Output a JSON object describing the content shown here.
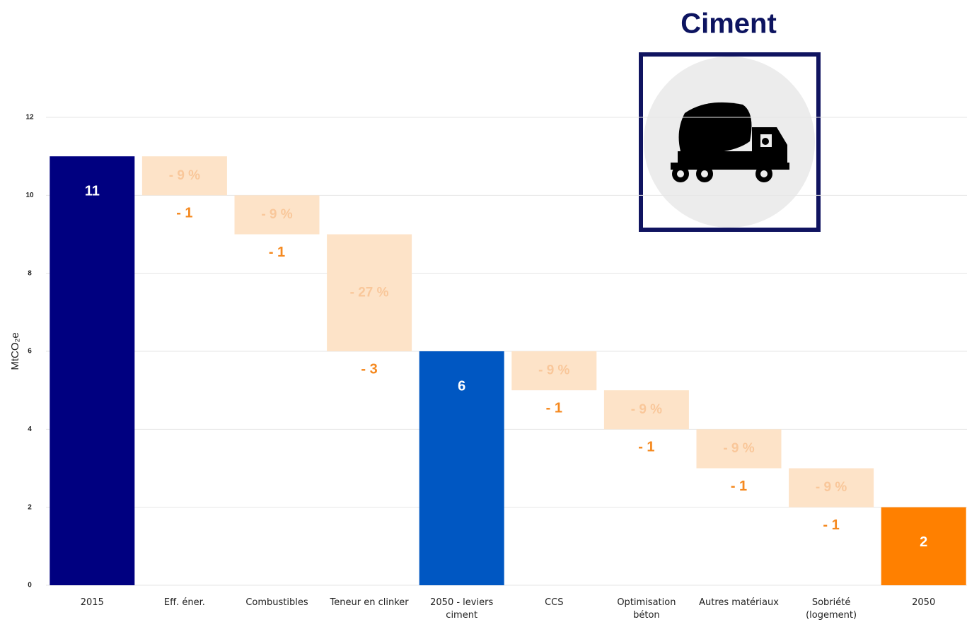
{
  "chart_data": {
    "type": "waterfall",
    "title": "Ciment",
    "y_label": "MtCO₂e",
    "categories": [
      "2015",
      "Eff. éner.",
      "Combustibles",
      "Teneur en clinker",
      "2050 - leviers\nciment",
      "CCS",
      "Optimisation\nbéton",
      "Autres matériaux",
      "Sobriété\n(logement)",
      "2050"
    ],
    "values": [
      11,
      -1,
      -1,
      -3,
      6,
      -1,
      -1,
      -1,
      -1,
      2
    ],
    "value_labels": [
      "11",
      "- 1",
      "- 1",
      "- 3",
      "6",
      "- 1",
      "- 1",
      "- 1",
      "- 1",
      "2"
    ],
    "percent_labels": [
      null,
      "- 9 %",
      "- 9 %",
      "- 27 %",
      null,
      "- 9 %",
      "- 9 %",
      "- 9 %",
      "- 9 %",
      null
    ],
    "colors": [
      "#000080",
      "#fde3c8",
      "#fde3c8",
      "#fde3c8",
      "#0057c2",
      "#fde3c8",
      "#fde3c8",
      "#fde3c8",
      "#fde3c8",
      "#ff8000"
    ],
    "ylim": [
      0,
      12
    ],
    "yticks": [
      0,
      2,
      4,
      6,
      8,
      10,
      12
    ],
    "grid": true
  }
}
